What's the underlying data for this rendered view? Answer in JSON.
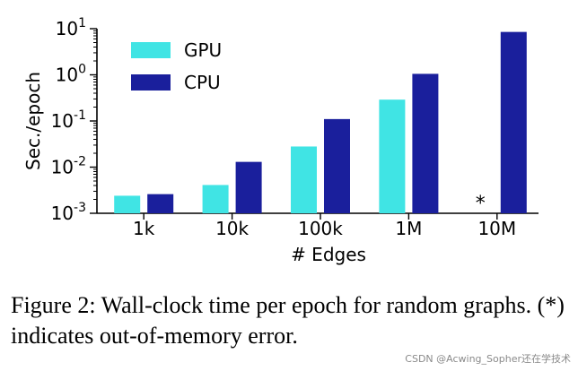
{
  "chart_data": {
    "type": "bar",
    "scale": "log",
    "categories": [
      "1k",
      "10k",
      "100k",
      "1M",
      "10M"
    ],
    "series": [
      {
        "name": "GPU",
        "color": "#40E4E4",
        "values": [
          0.0024,
          0.0041,
          0.028,
          0.29,
          null
        ]
      },
      {
        "name": "CPU",
        "color": "#1A1F9C",
        "values": [
          0.0026,
          0.013,
          0.11,
          1.05,
          8.5
        ]
      }
    ],
    "ylim": [
      0.001,
      10
    ],
    "yticks": [
      {
        "base": "10",
        "exp": "-3",
        "value": 0.001
      },
      {
        "base": "10",
        "exp": "-2",
        "value": 0.01
      },
      {
        "base": "10",
        "exp": "-1",
        "value": 0.1
      },
      {
        "base": "10",
        "exp": "0",
        "value": 1
      },
      {
        "base": "10",
        "exp": "1",
        "value": 10
      }
    ],
    "xlabel": "# Edges",
    "ylabel": "Sec./epoch",
    "legend_position": "top-left",
    "annotations": [
      {
        "category": "10M",
        "series": "GPU",
        "text": "*"
      }
    ],
    "grid": false
  },
  "caption": "Figure 2: Wall-clock time per epoch for random graphs. (*) indicates out-of-memory error.",
  "watermark": "CSDN @Acwing_Sopher还在学技术"
}
